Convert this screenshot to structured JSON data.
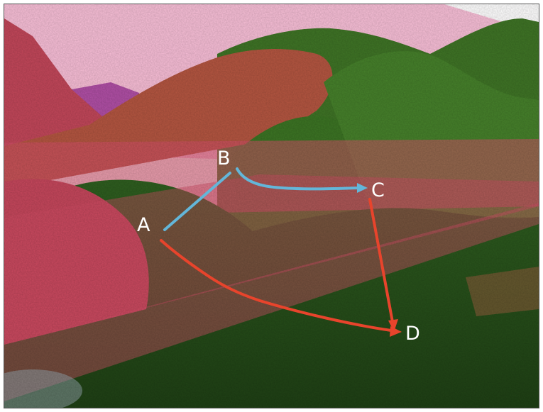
{
  "points": {
    "a": "A",
    "b": "B",
    "c": "C",
    "d": "D"
  },
  "colors": {
    "sky": "#f2c9dc",
    "pink_plane": "#f5a7c8",
    "hill_red": "#c7475f",
    "hill_green": "#3b6f24",
    "path_blue": "#63b6d9",
    "path_red": "#e8442c",
    "label": "#ffffff"
  }
}
